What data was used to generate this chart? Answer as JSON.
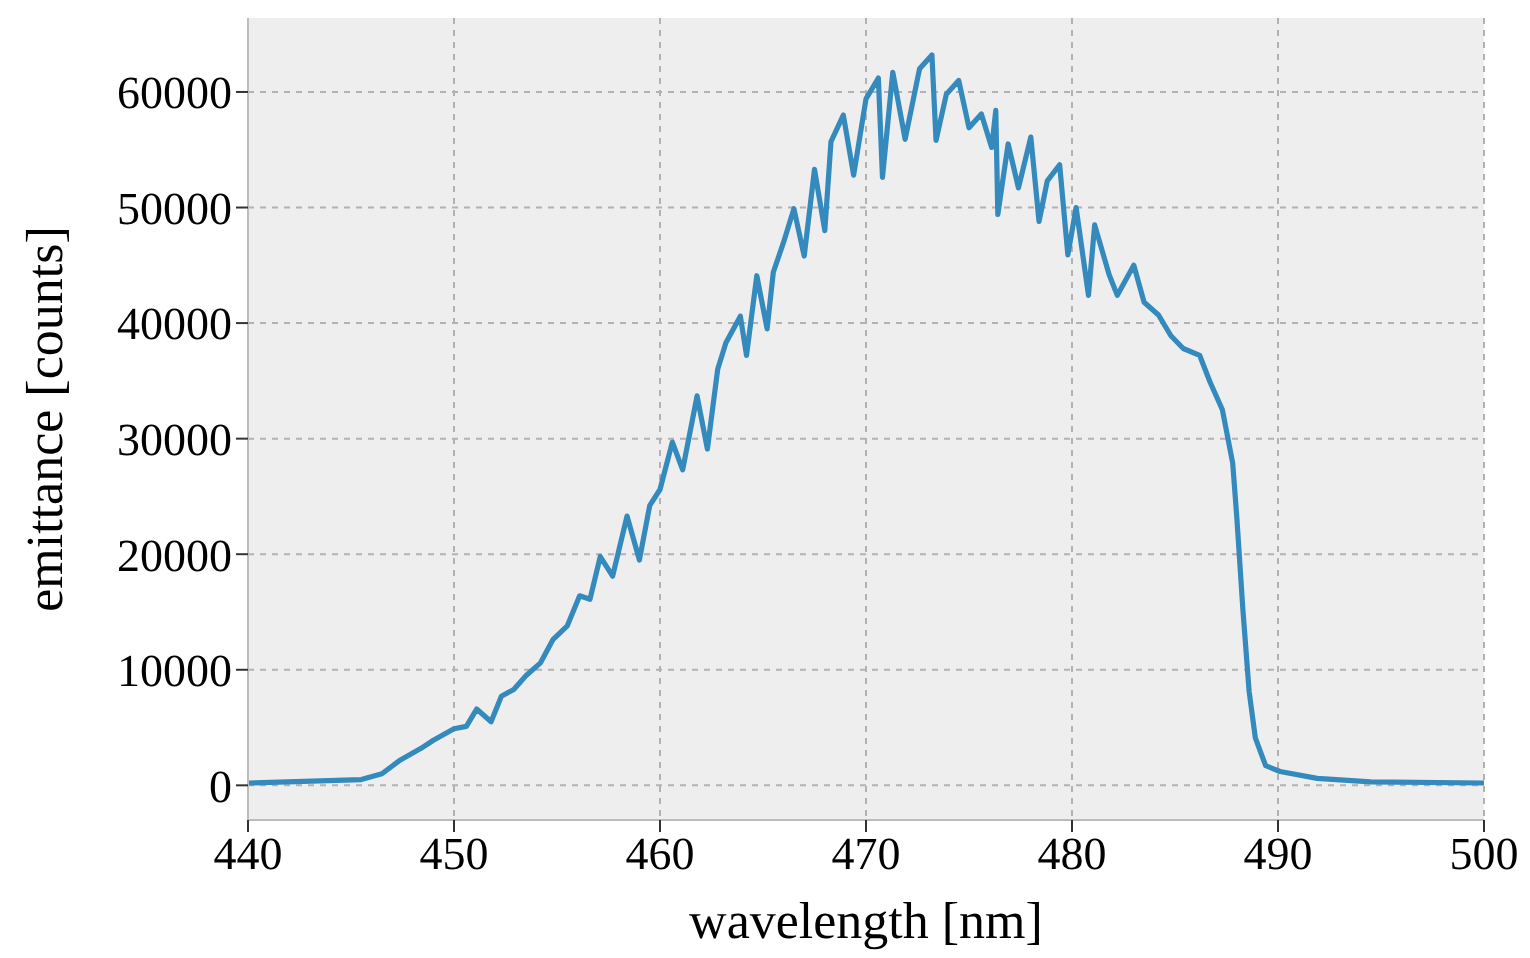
{
  "chart_data": {
    "type": "line",
    "xlabel": "wavelength [nm]",
    "ylabel": "emittance [counts]",
    "xlim": [
      440,
      500
    ],
    "xticks": [
      440,
      450,
      460,
      470,
      480,
      490,
      500
    ],
    "ylim": [
      -3000,
      66400
    ],
    "yticks": [
      0,
      10000,
      20000,
      30000,
      40000,
      50000,
      60000
    ],
    "grid": true,
    "series": [
      {
        "color": "#348abd",
        "x": [
          440,
          445.5,
          446.5,
          447.4,
          448.4,
          449,
          450,
          450.6,
          451.1,
          451.8,
          452.3,
          452.9,
          453.5,
          454.2,
          454.8,
          455.5,
          456.1,
          456.6,
          457.1,
          457.7,
          458.4,
          459,
          459.5,
          460,
          460.6,
          461.1,
          461.8,
          462.3,
          462.8,
          463.2,
          463.9,
          464.2,
          464.7,
          465.2,
          465.5,
          466,
          466.5,
          467,
          467.5,
          468,
          468.3,
          468.9,
          469.4,
          470,
          470.6,
          470.8,
          471.3,
          471.9,
          472.6,
          473.2,
          473.4,
          473.9,
          474.5,
          475,
          475.6,
          476.1,
          476.3,
          476.4,
          476.9,
          477.4,
          478,
          478.4,
          478.8,
          479.4,
          479.8,
          480.2,
          480.8,
          481.1,
          481.8,
          482.2,
          483,
          483.5,
          484.2,
          484.8,
          485.4,
          486.2,
          486.7,
          487.3,
          487.8,
          488,
          488.3,
          488.6,
          488.9,
          489.4,
          490.1,
          491.9,
          494.5,
          500
        ],
        "values": [
          200,
          500,
          1000,
          2200,
          3200,
          3900,
          4900,
          5100,
          6600,
          5500,
          7700,
          8300,
          9500,
          10600,
          12600,
          13800,
          16400,
          16100,
          19800,
          18100,
          23300,
          19500,
          24200,
          25600,
          29700,
          27300,
          33700,
          29100,
          36000,
          38300,
          40600,
          37200,
          44100,
          39500,
          44400,
          47000,
          49900,
          45800,
          53300,
          48000,
          55700,
          58000,
          52800,
          59400,
          61200,
          52600,
          61700,
          55900,
          62000,
          63200,
          55800,
          59800,
          61000,
          56900,
          58100,
          55200,
          58400,
          49400,
          55500,
          51700,
          56100,
          48800,
          52300,
          53700,
          45900,
          50000,
          42400,
          48500,
          44200,
          42400,
          45000,
          41800,
          40700,
          38900,
          37800,
          37200,
          34900,
          32500,
          27900,
          23200,
          15100,
          8100,
          4100,
          1700,
          1200,
          600,
          300,
          200
        ]
      }
    ]
  }
}
